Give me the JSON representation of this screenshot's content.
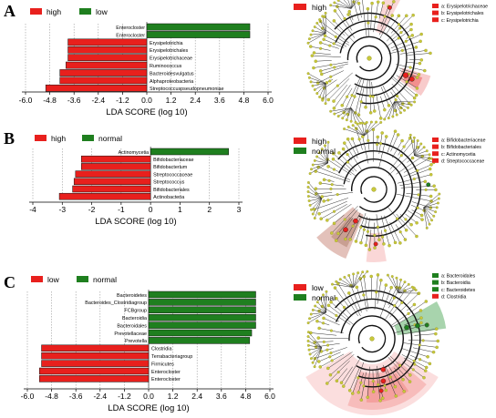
{
  "panels": [
    {
      "letter": "A",
      "legend": [
        {
          "label": "high",
          "color": "#e8201d"
        },
        {
          "label": "low",
          "color": "#1f7f1f"
        }
      ],
      "xlabel": "LDA SCORE (log 10)",
      "ticks": [
        "-6.0",
        "-4.8",
        "-3.6",
        "-2.4",
        "-1.2",
        "0.0",
        "1.2",
        "2.4",
        "3.6",
        "4.8",
        "6.0"
      ],
      "clado_legend": [
        "high"
      ],
      "clado_key": [
        "a: Erysipelotrichaceae",
        "b: Erysipelotrichales",
        "c: Erysipelotrichia"
      ]
    },
    {
      "letter": "B",
      "legend": [
        {
          "label": "high",
          "color": "#e8201d"
        },
        {
          "label": "normal",
          "color": "#1f7f1f"
        }
      ],
      "xlabel": "LDA SCORE (log 10)",
      "ticks": [
        "-4",
        "-3",
        "-2",
        "-1",
        "0",
        "1",
        "2",
        "3"
      ],
      "clado_legend": [
        "high",
        "normal"
      ],
      "clado_key": [
        "a: Bifidobacteriaceae",
        "b: Bifidobacteriales",
        "c: Actinomycetia",
        "d: Streptococcaceae"
      ]
    },
    {
      "letter": "C",
      "legend": [
        {
          "label": "low",
          "color": "#e8201d"
        },
        {
          "label": "normal",
          "color": "#1f7f1f"
        }
      ],
      "xlabel": "LDA SCORE (log 10)",
      "ticks": [
        "-6.0",
        "-4.8",
        "-3.6",
        "-2.4",
        "-1.2",
        "0.0",
        "1.2",
        "2.4",
        "3.6",
        "4.8",
        "6.0"
      ],
      "clado_legend": [
        "low",
        "normal"
      ],
      "clado_key": [
        "a: Bacteroidales",
        "b: Bacteroidia",
        "c: Bacteroidetes",
        "d: Clostridia"
      ]
    }
  ],
  "chart_data": [
    {
      "type": "bar",
      "orientation": "horizontal",
      "xlabel": "LDA SCORE (log 10)",
      "xlim": [
        -6.0,
        6.0
      ],
      "categories": [
        "Enterocloster",
        "Enterocloster",
        "Erysipelotrichia",
        "Erysipelotrichales",
        "Erysipelotrichaceae",
        "Ruminococcus",
        "Bacteroidesvulgatus",
        "Alphaproteobacteria",
        "Streptococcuspseudopneumoniae"
      ],
      "category_labels": [
        "Enterocloster",
        "Enterocloster",
        "Erysipelotrichia",
        "Erysipelotrichales",
        "Erysipelotrichaceae",
        "Ruminococcus",
        "Bacteroidesvulgatus",
        "Alphaproteobacteria",
        "Streptococcuspseudopneumoniae"
      ],
      "series": [
        {
          "name": "low",
          "color": "#1f7f1f",
          "values": [
            5.1,
            5.1,
            null,
            null,
            null,
            null,
            null,
            null,
            null
          ]
        },
        {
          "name": "high",
          "color": "#e8201d",
          "values": [
            null,
            null,
            -3.9,
            -3.9,
            -3.9,
            -4.0,
            -4.3,
            -4.3,
            -5.0
          ]
        }
      ]
    },
    {
      "type": "bar",
      "orientation": "horizontal",
      "xlabel": "LDA SCORE (log 10)",
      "xlim": [
        -4,
        3
      ],
      "categories": [
        "Actinomycetia",
        "Bifidobacteriaceae",
        "Bifidobacterium",
        "Streptococcaceae",
        "Streptococcus",
        "Bifidobacteriales",
        "Actinobacteria"
      ],
      "series": [
        {
          "name": "normal",
          "color": "#1f7f1f",
          "values": [
            2.65,
            null,
            null,
            null,
            null,
            null,
            null
          ]
        },
        {
          "name": "high",
          "color": "#e8201d",
          "values": [
            null,
            -2.35,
            -2.35,
            -2.55,
            -2.6,
            -2.65,
            -3.1
          ]
        }
      ]
    },
    {
      "type": "bar",
      "orientation": "horizontal",
      "xlabel": "LDA SCORE (log 10)",
      "xlim": [
        -6.0,
        6.0
      ],
      "categories": [
        "Bacteroidetes",
        "Bacteroides_Clostridiagroup",
        "FCBgroup",
        "Bacteroidia",
        "Bacteroidales",
        "Prevotellaceae",
        "Prevotella",
        "Clostridia",
        "Terrabacteriagroup",
        "Firmicutes",
        "Enterocloster",
        "Enterocloster"
      ],
      "series": [
        {
          "name": "normal",
          "color": "#1f7f1f",
          "values": [
            5.3,
            5.3,
            5.3,
            5.3,
            5.3,
            5.1,
            5.0,
            null,
            null,
            null,
            null,
            null
          ]
        },
        {
          "name": "low",
          "color": "#e8201d",
          "values": [
            null,
            null,
            null,
            null,
            null,
            null,
            null,
            -5.3,
            -5.3,
            -5.3,
            -5.4,
            -5.4
          ]
        }
      ]
    }
  ]
}
